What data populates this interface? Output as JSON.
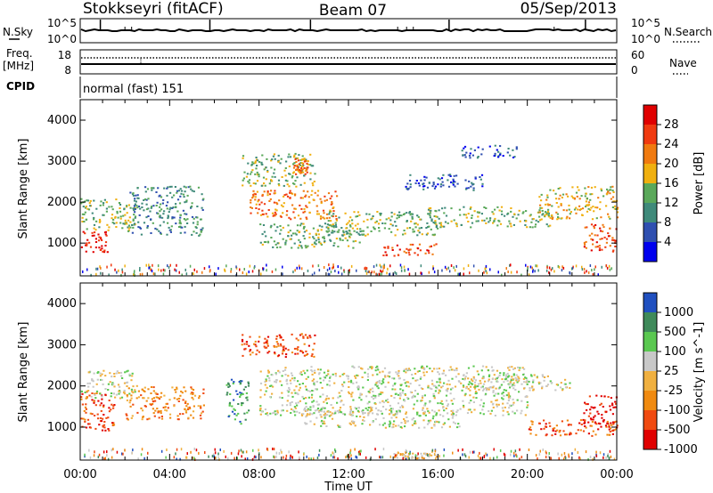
{
  "header": {
    "station": "Stokkseyri (fitACF)",
    "beam": "Beam 07",
    "date": "05/Sep/2013"
  },
  "noise_panel": {
    "left_label": "N.Sky",
    "right_label": "N.Search",
    "left_ticks": [
      "10^5",
      "10^0"
    ],
    "right_ticks": [
      "10^5",
      "10^0"
    ]
  },
  "freq_panel": {
    "left_label_1": "Freq.",
    "left_label_2": "[MHz]",
    "right_label": "Nave",
    "left_ticks": [
      "18",
      "8"
    ],
    "right_ticks": [
      "60",
      "0"
    ]
  },
  "cpid": {
    "label": "CPID",
    "value": "normal (fast) 151"
  },
  "x_axis": {
    "label": "Time UT",
    "ticks": [
      "00:00",
      "04:00",
      "08:00",
      "12:00",
      "16:00",
      "20:00",
      "00:00"
    ]
  },
  "colors": {
    "power": [
      "#0000ee",
      "#2f4fb0",
      "#3f8a7a",
      "#5aa85a",
      "#f0b010",
      "#f07a10",
      "#f03a10",
      "#e00000"
    ],
    "velocity": [
      "#e00000",
      "#f04a10",
      "#f08a10",
      "#f0b040",
      "#c8c8c8",
      "#5ac850",
      "#3f8a5a",
      "#2050c0"
    ]
  },
  "chart_data": [
    {
      "type": "heatmap",
      "title": "Power",
      "ylabel": "Slant Range [km]",
      "xlabel": "",
      "colorbar_label": "Power [dB]",
      "colorbar_ticks": [
        "28",
        "24",
        "20",
        "16",
        "12",
        "8",
        "4"
      ],
      "y_ticks": [
        "4000",
        "3000",
        "2000",
        "1000"
      ],
      "ylim": [
        200,
        4500
      ],
      "xlim_hours": [
        0,
        24
      ],
      "regions": [
        {
          "t0": 0.0,
          "t1": 1.2,
          "r0": 800,
          "r1": 1300,
          "level": 7
        },
        {
          "t0": 0.0,
          "t1": 2.5,
          "r0": 1300,
          "r1": 2100,
          "level": 3
        },
        {
          "t0": 2.2,
          "t1": 5.5,
          "r0": 1200,
          "r1": 2400,
          "level": 2
        },
        {
          "t0": 7.2,
          "t1": 10.5,
          "r0": 2400,
          "r1": 3200,
          "level": 3
        },
        {
          "t0": 9.5,
          "t1": 10.2,
          "r0": 2700,
          "r1": 3100,
          "level": 5
        },
        {
          "t0": 7.5,
          "t1": 11.5,
          "r0": 1600,
          "r1": 2300,
          "level": 5
        },
        {
          "t0": 8.0,
          "t1": 12.5,
          "r0": 900,
          "r1": 1500,
          "level": 3
        },
        {
          "t0": 11.0,
          "t1": 16.0,
          "r0": 1200,
          "r1": 1800,
          "level": 3
        },
        {
          "t0": 13.5,
          "t1": 16.0,
          "r0": 700,
          "r1": 1000,
          "level": 6
        },
        {
          "t0": 15.5,
          "t1": 21.0,
          "r0": 1400,
          "r1": 1900,
          "level": 3
        },
        {
          "t0": 20.5,
          "t1": 24.0,
          "r0": 1600,
          "r1": 2400,
          "level": 4
        },
        {
          "t0": 22.5,
          "t1": 24.0,
          "r0": 800,
          "r1": 1500,
          "level": 6
        },
        {
          "t0": 14.5,
          "t1": 18.0,
          "r0": 2300,
          "r1": 2700,
          "level": 1
        },
        {
          "t0": 17.0,
          "t1": 19.5,
          "r0": 3100,
          "r1": 3400,
          "level": 1
        }
      ]
    },
    {
      "type": "heatmap",
      "title": "Velocity",
      "ylabel": "Slant Range [km]",
      "xlabel": "Time UT",
      "colorbar_label": "Velocity [m s^-1]",
      "colorbar_ticks": [
        "1000",
        "500",
        "100",
        "25",
        "-25",
        "-100",
        "-500",
        "-1000"
      ],
      "y_ticks": [
        "4000",
        "3000",
        "2000",
        "1000"
      ],
      "ylim": [
        200,
        4500
      ],
      "xlim_hours": [
        0,
        24
      ],
      "regions": [
        {
          "t0": 0.0,
          "t1": 1.5,
          "r0": 900,
          "r1": 1900,
          "level": 1
        },
        {
          "t0": 0.0,
          "t1": 2.5,
          "r0": 1700,
          "r1": 2400,
          "level": 4
        },
        {
          "t0": 2.0,
          "t1": 5.5,
          "r0": 1200,
          "r1": 2000,
          "level": 2
        },
        {
          "t0": 7.2,
          "t1": 10.5,
          "r0": 2700,
          "r1": 3300,
          "level": 1
        },
        {
          "t0": 6.5,
          "t1": 7.5,
          "r0": 1100,
          "r1": 2200,
          "level": 6
        },
        {
          "t0": 8.0,
          "t1": 20.0,
          "r0": 1300,
          "r1": 2500,
          "level": 4
        },
        {
          "t0": 10.0,
          "t1": 17.0,
          "r0": 1000,
          "r1": 1500,
          "level": 4
        },
        {
          "t0": 20.0,
          "t1": 24.0,
          "r0": 800,
          "r1": 1200,
          "level": 1
        },
        {
          "t0": 22.5,
          "t1": 24.0,
          "r0": 1000,
          "r1": 1800,
          "level": 0
        },
        {
          "t0": 17.0,
          "t1": 22.0,
          "r0": 1900,
          "r1": 2300,
          "level": 4
        },
        {
          "t0": 14.0,
          "t1": 16.0,
          "r0": 250,
          "r1": 400,
          "level": 3
        }
      ]
    }
  ]
}
